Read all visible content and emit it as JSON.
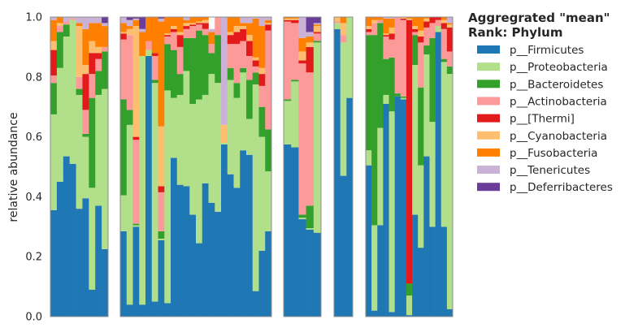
{
  "chart_data": {
    "type": "bar",
    "stacked": true,
    "ylabel": "relative abundance",
    "ylim": [
      0,
      1
    ],
    "yticks": [
      "0.0",
      "0.2",
      "0.4",
      "0.6",
      "0.8",
      "1.0"
    ],
    "legend": {
      "title_line1": "Aggregrated \"mean\"",
      "title_line2": "Rank: Phylum",
      "placement": "right"
    },
    "series": [
      {
        "name": "p__Firmicutes",
        "color": "#1f77b4"
      },
      {
        "name": "p__Proteobacteria",
        "color": "#b2df8a"
      },
      {
        "name": "p__Bacteroidetes",
        "color": "#33a02c"
      },
      {
        "name": "p__Actinobacteria",
        "color": "#fb9a99"
      },
      {
        "name": "p__[Thermi]",
        "color": "#e31a1c"
      },
      {
        "name": "p__Cyanobacteria",
        "color": "#fdbf6f"
      },
      {
        "name": "p__Fusobacteria",
        "color": "#ff7f00"
      },
      {
        "name": "p__Tenericutes",
        "color": "#cab2d6"
      },
      {
        "name": "p__Deferribacteres",
        "color": "#6a3d9a"
      }
    ],
    "groups": [
      {
        "bars": [
          [
            0.355,
            0.32,
            0.105,
            0.025,
            0.085,
            0.03,
            0.07,
            0.01,
            0
          ],
          [
            0.45,
            0.38,
            0.12,
            0.02,
            0,
            0.01,
            0.02,
            0,
            0
          ],
          [
            0.535,
            0.4,
            0.04,
            0.01,
            0,
            0,
            0,
            0.015,
            0
          ],
          [
            0.51,
            0.48,
            0,
            0.005,
            0,
            0,
            0,
            0.005,
            0
          ],
          [
            0.36,
            0.38,
            0.02,
            0.04,
            0,
            0.17,
            0.01,
            0.02,
            0
          ],
          [
            0.395,
            0.205,
            0.01,
            0.08,
            0.12,
            0.03,
            0.12,
            0.04,
            0
          ],
          [
            0.09,
            0.34,
            0.3,
            0.08,
            0.07,
            0.04,
            0.06,
            0.02,
            0
          ],
          [
            0.37,
            0.37,
            0.08,
            0.04,
            0.02,
            0.02,
            0.08,
            0.02,
            0
          ],
          [
            0.225,
            0.535,
            0.125,
            0.015,
            0,
            0,
            0.07,
            0.01,
            0.02
          ]
        ]
      },
      {
        "bars": [
          [
            0.285,
            0.12,
            0.32,
            0.2,
            0.02,
            0.005,
            0.03,
            0.02,
            0
          ],
          [
            0.04,
            0.6,
            0.05,
            0.25,
            0,
            0.02,
            0.01,
            0.02,
            0.01
          ],
          [
            0.3,
            0.005,
            0.005,
            0.28,
            0.01,
            0.37,
            0.02,
            0.005,
            0.005
          ],
          [
            0.04,
            0.83,
            0,
            0,
            0,
            0,
            0.08,
            0.01,
            0.04
          ],
          [
            0.87,
            0.02,
            0,
            0.03,
            0,
            0,
            0.08,
            0,
            0
          ],
          [
            0.05,
            0.73,
            0.01,
            0.08,
            0.01,
            0,
            0.12,
            0,
            0
          ],
          [
            0.255,
            0.005,
            0.025,
            0.13,
            0.02,
            0.2,
            0.35,
            0.01,
            0.005
          ],
          [
            0.045,
            0.71,
            0.155,
            0.025,
            0.005,
            0.005,
            0.055,
            0,
            0
          ],
          [
            0.53,
            0.2,
            0.16,
            0.06,
            0.01,
            0.01,
            0.03,
            0,
            0
          ],
          [
            0.44,
            0.3,
            0.07,
            0.09,
            0.04,
            0.01,
            0.05,
            0,
            0
          ],
          [
            0.435,
            0.385,
            0.11,
            0.03,
            0.01,
            0.01,
            0.01,
            0.01,
            0
          ],
          [
            0.34,
            0.37,
            0.22,
            0.04,
            0.005,
            0.005,
            0.02,
            0,
            0
          ],
          [
            0.245,
            0.48,
            0.23,
            0.02,
            0.005,
            0.005,
            0.015,
            0,
            0
          ],
          [
            0.445,
            0.295,
            0.2,
            0.02,
            0.02,
            0.01,
            0.01,
            0.01,
            0
          ],
          [
            0.38,
            0.43,
            0.07,
            0.03,
            0,
            0,
            0.04,
            0.01,
            0
          ],
          [
            0.35,
            0.43,
            0.16,
            0.06,
            0,
            0,
            0,
            0,
            0
          ],
          [
            0.575,
            0.005,
            0,
            0,
            0,
            0.06,
            0,
            0.36,
            0
          ],
          [
            0.475,
            0.315,
            0.04,
            0.08,
            0.03,
            0.01,
            0.05,
            0,
            0
          ],
          [
            0.43,
            0.3,
            0.05,
            0.13,
            0.04,
            0.02,
            0.03,
            0,
            0
          ],
          [
            0.555,
            0.26,
            0.015,
            0.09,
            0.04,
            0.01,
            0.01,
            0.02,
            0
          ],
          [
            0.54,
            0.12,
            0.13,
            0.08,
            0.05,
            0.02,
            0.04,
            0.02,
            0
          ],
          [
            0.085,
            0.69,
            0.04,
            0.02,
            0.02,
            0.01,
            0.13,
            0.005,
            0
          ],
          [
            0.22,
            0.38,
            0.1,
            0.07,
            0.04,
            0.02,
            0.14,
            0.03,
            0
          ],
          [
            0.285,
            0.2,
            0.14,
            0.33,
            0.02,
            0.005,
            0.01,
            0.01,
            0
          ]
        ]
      },
      {
        "bars": [
          [
            0.575,
            0.145,
            0.005,
            0.26,
            0.005,
            0.005,
            0.005,
            0.005,
            0
          ],
          [
            0.565,
            0.22,
            0.005,
            0.19,
            0.01,
            0.005,
            0.005,
            0,
            0
          ],
          [
            0.325,
            0.005,
            0.01,
            0.505,
            0.01,
            0.03,
            0.045,
            0.07,
            0
          ],
          [
            0.29,
            0.005,
            0.075,
            0.445,
            0.085,
            0.015,
            0.02,
            0.015,
            0.05
          ],
          [
            0.28,
            0.635,
            0.005,
            0.025,
            0.005,
            0.02,
            0.005,
            0.005,
            0.025
          ]
        ]
      },
      {
        "bars": [
          [
            0.96,
            0.02,
            0,
            0.005,
            0,
            0.015,
            0,
            0,
            0
          ],
          [
            0.47,
            0.445,
            0,
            0.025,
            0,
            0.04,
            0.02,
            0,
            0
          ],
          [
            0.73,
            0.27,
            0,
            0,
            0,
            0,
            0,
            0,
            0
          ]
        ]
      },
      {
        "bars": [
          [
            0.505,
            0.05,
            0.385,
            0.01,
            0.01,
            0.01,
            0.03,
            0,
            0
          ],
          [
            0.02,
            0.285,
            0.635,
            0.04,
            0,
            0.01,
            0.01,
            0,
            0
          ],
          [
            0.305,
            0.325,
            0.35,
            0.01,
            0,
            0,
            0.01,
            0,
            0
          ],
          [
            0.71,
            0.03,
            0.12,
            0.075,
            0.005,
            0.005,
            0.05,
            0.005,
            0
          ],
          [
            0.015,
            0.67,
            0.18,
            0.06,
            0.02,
            0.02,
            0.03,
            0.005,
            0
          ],
          [
            0.735,
            0,
            0.01,
            0.255,
            0,
            0,
            0,
            0,
            0
          ],
          [
            0.725,
            0.005,
            0.005,
            0.255,
            0.005,
            0.005,
            0,
            0,
            0
          ],
          [
            0.005,
            0.065,
            0.04,
            0,
            0.88,
            0.005,
            0.005,
            0,
            0
          ],
          [
            0.34,
            0.5,
            0.1,
            0.01,
            0.01,
            0.01,
            0.03,
            0,
            0
          ],
          [
            0.23,
            0.275,
            0.26,
            0.15,
            0.02,
            0.02,
            0.045,
            0,
            0
          ],
          [
            0.535,
            0.34,
            0.03,
            0.06,
            0.02,
            0.01,
            0.005,
            0,
            0
          ],
          [
            0.3,
            0.35,
            0.28,
            0.05,
            0.02,
            0,
            0,
            0,
            0
          ],
          [
            0.95,
            0.02,
            0,
            0.02,
            0.01,
            0,
            0,
            0,
            0
          ],
          [
            0.3,
            0.55,
            0.01,
            0.1,
            0.02,
            0.01,
            0.01,
            0,
            0
          ],
          [
            0.025,
            0.785,
            0.025,
            0.05,
            0.08,
            0.01,
            0.005,
            0.02,
            0
          ]
        ]
      }
    ]
  }
}
